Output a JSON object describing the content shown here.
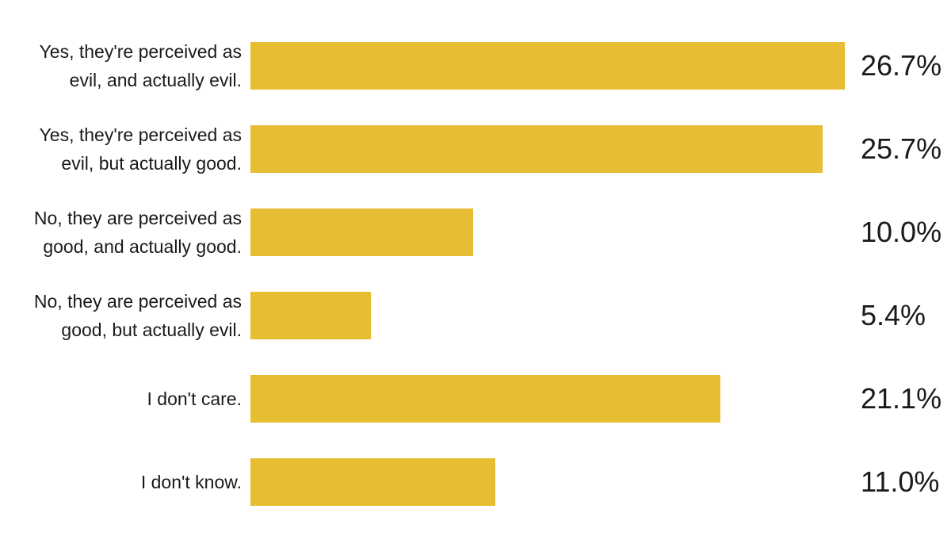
{
  "colors": {
    "bar": "#e6bd33",
    "text": "#1a1a1a",
    "background": "#ffffff"
  },
  "chart_data": {
    "type": "bar",
    "orientation": "horizontal",
    "title": "",
    "xlabel": "",
    "ylabel": "",
    "grid": false,
    "legend": "none",
    "xlim": [
      0,
      26.7
    ],
    "categories": [
      [
        "Yes, they're perceived as",
        "evil, and actually evil."
      ],
      [
        "Yes, they're perceived as",
        "evil, but actually good."
      ],
      [
        "No, they are perceived as",
        "good, and actually good."
      ],
      [
        "No, they are perceived as",
        "good, but actually evil."
      ],
      [
        "I don't care."
      ],
      [
        "I don't know."
      ]
    ],
    "values": [
      26.7,
      25.7,
      10.0,
      5.4,
      21.1,
      11.0
    ],
    "value_labels": [
      "26.7%",
      "25.7%",
      "10.0%",
      "5.4%",
      "21.1%",
      "11.0%"
    ]
  }
}
